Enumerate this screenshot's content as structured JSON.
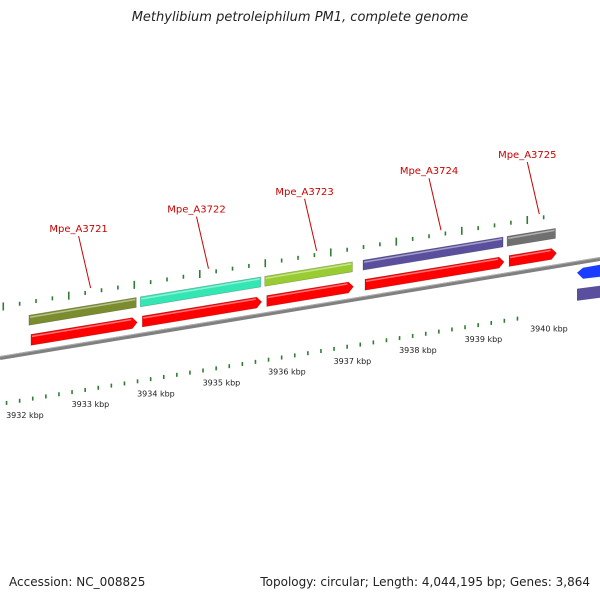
{
  "title": "Methylibium petroleiphilum PM1, complete genome",
  "footer": {
    "accession": "Accession: NC_008825",
    "summary": "Topology: circular; Length: 4,044,195 bp; Genes: 3,864"
  },
  "colors": {
    "gene_label": "#cc0000",
    "cds": "#ff0000",
    "backbone": "#808080",
    "tick": "#2e7d32"
  },
  "genes": [
    {
      "locus": "Mpe_A3721",
      "start_kbp": 3932.0,
      "end_kbp": 3933.7,
      "cog_color": "#7a8c2e"
    },
    {
      "locus": "Mpe_A3722",
      "start_kbp": 3933.7,
      "end_kbp": 3935.6,
      "cog_color": "#33e6b3"
    },
    {
      "locus": "Mpe_A3723",
      "start_kbp": 3935.6,
      "end_kbp": 3937.0,
      "cog_color": "#99cc33"
    },
    {
      "locus": "Mpe_A3724",
      "start_kbp": 3937.1,
      "end_kbp": 3939.3,
      "cog_color": "#5a4f9c"
    },
    {
      "locus": "Mpe_A3725",
      "start_kbp": 3939.3,
      "end_kbp": 3940.1,
      "cog_color": "#707070"
    }
  ],
  "kbp_labels": [
    "3932 kbp",
    "3933 kbp",
    "3934 kbp",
    "3935 kbp",
    "3936 kbp",
    "3937 kbp",
    "3938 kbp",
    "3939 kbp",
    "3940 kbp"
  ]
}
